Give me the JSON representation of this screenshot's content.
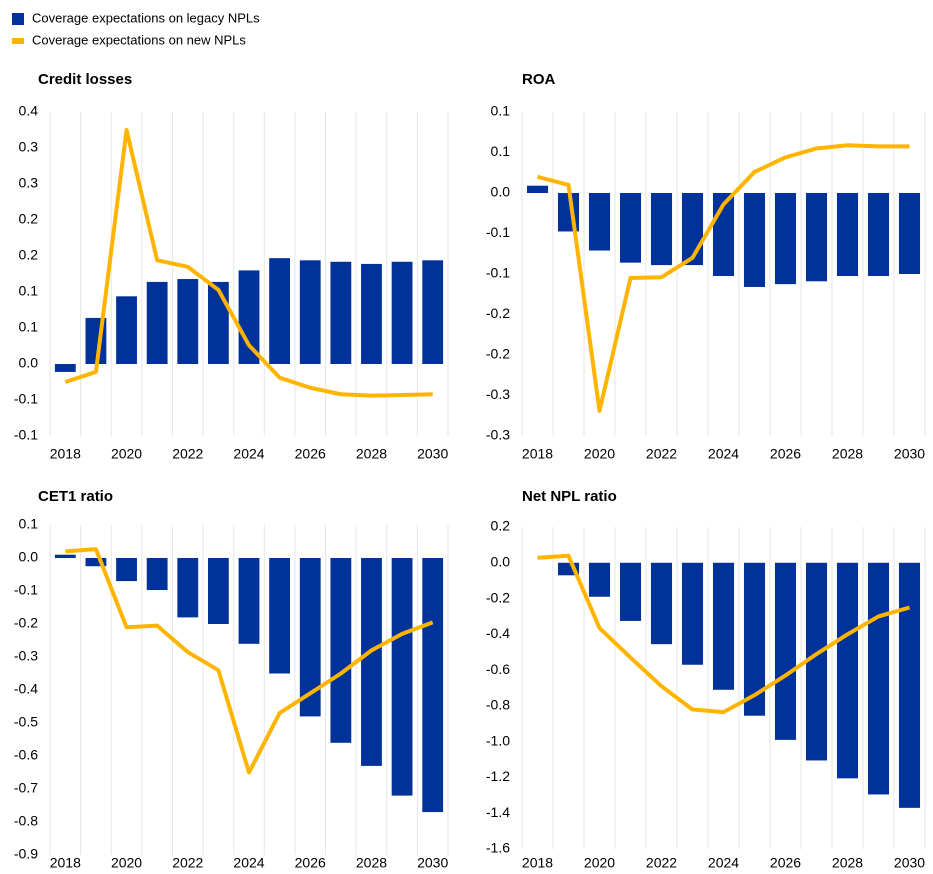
{
  "legend": [
    {
      "name": "Coverage expectations on legacy NPLs",
      "color": "#003299",
      "type": "bar"
    },
    {
      "name": "Coverage expectations on new NPLs",
      "color": "#ffb400",
      "type": "line"
    }
  ],
  "chart_data": [
    {
      "type": "combo",
      "title": "Credit losses",
      "x": [
        2018,
        2019,
        2020,
        2021,
        2022,
        2023,
        2024,
        2025,
        2026,
        2027,
        2028,
        2029,
        2030
      ],
      "xlim": [
        2017.5,
        2030.5
      ],
      "xticks": [
        2018,
        2020,
        2022,
        2024,
        2026,
        2028,
        2030
      ],
      "ylim": [
        -0.1,
        0.35
      ],
      "yticks": [
        {
          "value": 0.35,
          "label": "0.4"
        },
        0.3,
        {
          "value": 0.25,
          "label": "0.3"
        },
        0.2,
        {
          "value": 0.15,
          "label": "0.2"
        },
        0.1,
        {
          "value": 0.05,
          "label": "0.1"
        },
        {
          "value": 0,
          "label": "0.0"
        },
        {
          "value": -0.05,
          "label": "-0.1"
        },
        -0.1
      ],
      "series": [
        {
          "values": [
            -0.011,
            0.064,
            0.094,
            0.114,
            0.118,
            0.114,
            0.13,
            0.147,
            0.144,
            0.142,
            0.139,
            0.142,
            0.144
          ]
        },
        {
          "values": [
            -0.025,
            -0.011,
            0.325,
            0.144,
            0.135,
            0.103,
            0.026,
            -0.019,
            -0.033,
            -0.042,
            -0.044,
            -0.043,
            -0.042
          ]
        }
      ]
    },
    {
      "type": "combo",
      "title": "ROA",
      "x": [
        2018,
        2019,
        2020,
        2021,
        2022,
        2023,
        2024,
        2025,
        2026,
        2027,
        2028,
        2029,
        2030
      ],
      "xlim": [
        2017.5,
        2030.5
      ],
      "xticks": [
        2018,
        2020,
        2022,
        2024,
        2026,
        2028,
        2030
      ],
      "ylim": [
        -0.3,
        0.1
      ],
      "yticks": [
        0.1,
        {
          "value": 0.05,
          "label": "0.1"
        },
        {
          "value": 0,
          "label": "0.0"
        },
        {
          "value": -0.05,
          "label": "-0.1"
        },
        -0.1,
        {
          "value": -0.15,
          "label": "-0.2"
        },
        -0.2,
        {
          "value": -0.25,
          "label": "-0.3"
        },
        -0.3
      ],
      "series": [
        {
          "values": [
            0.009,
            -0.0475,
            -0.071,
            -0.086,
            -0.089,
            -0.089,
            -0.1025,
            -0.116,
            -0.1125,
            -0.109,
            -0.1025,
            -0.1025,
            -0.1
          ]
        },
        {
          "values": [
            0.02,
            0.01,
            -0.269,
            -0.105,
            -0.104,
            -0.08,
            -0.014,
            0.026,
            0.044,
            0.055,
            0.059,
            0.0575,
            0.0575
          ]
        }
      ]
    },
    {
      "type": "combo",
      "title": "CET1 ratio",
      "x": [
        2018,
        2019,
        2020,
        2021,
        2022,
        2023,
        2024,
        2025,
        2026,
        2027,
        2028,
        2029,
        2030
      ],
      "xlim": [
        2017.5,
        2030.5
      ],
      "xticks": [
        2018,
        2020,
        2022,
        2024,
        2026,
        2028,
        2030
      ],
      "ylim": [
        -0.9,
        0.1
      ],
      "yticks": [
        0.1,
        {
          "value": 0,
          "label": "0.0"
        },
        -0.1,
        -0.2,
        -0.3,
        -0.4,
        -0.5,
        -0.6,
        -0.7,
        -0.8,
        -0.9
      ],
      "series": [
        {
          "values": [
            0.01,
            -0.025,
            -0.07,
            -0.097,
            -0.18,
            -0.2,
            -0.26,
            -0.35,
            -0.48,
            -0.56,
            -0.63,
            -0.72,
            -0.77
          ]
        },
        {
          "values": [
            0.02,
            0.027,
            -0.21,
            -0.205,
            -0.285,
            -0.34,
            -0.65,
            -0.47,
            -0.41,
            -0.35,
            -0.28,
            -0.23,
            -0.195
          ]
        }
      ]
    },
    {
      "type": "combo",
      "title": "Net NPL ratio",
      "x": [
        2018,
        2019,
        2020,
        2021,
        2022,
        2023,
        2024,
        2025,
        2026,
        2027,
        2028,
        2029,
        2030
      ],
      "xlim": [
        2017.5,
        2030.5
      ],
      "xticks": [
        2018,
        2020,
        2022,
        2024,
        2026,
        2028,
        2030
      ],
      "ylim": [
        -1.6,
        0.2
      ],
      "yticks": [
        0.2,
        {
          "value": 0,
          "label": "0.0"
        },
        -0.2,
        -0.4,
        -0.6,
        -0.8,
        {
          "value": -1,
          "label": "-1.0"
        },
        -1.2,
        -1.4,
        -1.6
      ],
      "series": [
        {
          "values": [
            0,
            -0.07,
            -0.19,
            -0.325,
            -0.455,
            -0.57,
            -0.71,
            -0.855,
            -0.99,
            -1.105,
            -1.205,
            -1.295,
            -1.37
          ]
        },
        {
          "values": [
            0.028,
            0.039,
            -0.365,
            -0.53,
            -0.69,
            -0.82,
            -0.835,
            -0.74,
            -0.63,
            -0.51,
            -0.4,
            -0.3,
            -0.25
          ]
        }
      ]
    }
  ]
}
